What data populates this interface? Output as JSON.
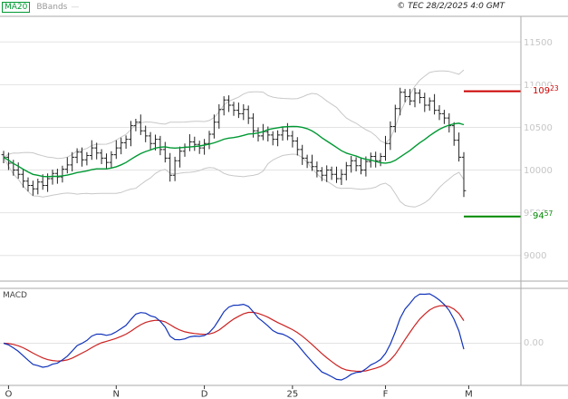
{
  "legend": {
    "ma20": "MA20",
    "bbands": "BBands",
    "sample": "—"
  },
  "copyright": "© TEC 28/2/2025 4:0 GMT",
  "macd_label": "MACD",
  "levels": {
    "resistance": {
      "value": 10923,
      "label_main": "109",
      "label_sup": "23",
      "color": "#cc0000"
    },
    "support": {
      "value": 9457,
      "label_main": "94",
      "label_sup": "57",
      "color": "#008800"
    }
  },
  "chart_data": {
    "type": "ohlc",
    "grid": true,
    "legend_position": "top-left",
    "y_axis_side": "right",
    "y_range": [
      8700,
      11800
    ],
    "y_ticks": [
      {
        "value": 11500,
        "label": "11500"
      },
      {
        "value": 11000,
        "label": "11000"
      },
      {
        "value": 10500,
        "label": "10500"
      },
      {
        "value": 10000,
        "label": "10000"
      },
      {
        "value": 9500,
        "label": "9500"
      },
      {
        "value": 9000,
        "label": "9000"
      }
    ],
    "x_ticks": [
      {
        "label": "O",
        "index": 1
      },
      {
        "label": "N",
        "index": 23
      },
      {
        "label": "D",
        "index": 41
      },
      {
        "label": "25",
        "index": 59
      },
      {
        "label": "F",
        "index": 78
      },
      {
        "label": "M",
        "index": 95
      }
    ],
    "indicators": {
      "ma_period": 20,
      "bbands": {
        "period": 20,
        "mult": 2
      },
      "macd": {
        "fast": 12,
        "slow": 26,
        "signal": 9
      }
    },
    "macd_zero_label": "0.00",
    "ohlc": [
      [
        10180,
        10225,
        10080,
        10150
      ],
      [
        10150,
        10205,
        10000,
        10080
      ],
      [
        10080,
        10120,
        9935,
        10000
      ],
      [
        10000,
        10090,
        9900,
        9950
      ],
      [
        9950,
        10010,
        9795,
        9870
      ],
      [
        9870,
        9915,
        9750,
        9820
      ],
      [
        9820,
        9875,
        9700,
        9780
      ],
      [
        9780,
        9900,
        9715,
        9860
      ],
      [
        9860,
        9950,
        9770,
        9820
      ],
      [
        9820,
        9960,
        9745,
        9900
      ],
      [
        9900,
        10005,
        9830,
        9960
      ],
      [
        9960,
        10015,
        9840,
        9920
      ],
      [
        9920,
        10050,
        9855,
        10010
      ],
      [
        10010,
        10150,
        9960,
        10060
      ],
      [
        10060,
        10210,
        9985,
        10150
      ],
      [
        10150,
        10255,
        10080,
        10210
      ],
      [
        10210,
        10265,
        10040,
        10120
      ],
      [
        10120,
        10210,
        10055,
        10170
      ],
      [
        10170,
        10350,
        10120,
        10260
      ],
      [
        10260,
        10320,
        10125,
        10200
      ],
      [
        10200,
        10245,
        10070,
        10140
      ],
      [
        10140,
        10195,
        10010,
        10090
      ],
      [
        10090,
        10220,
        10025,
        10180
      ],
      [
        10180,
        10350,
        10130,
        10260
      ],
      [
        10260,
        10380,
        10185,
        10320
      ],
      [
        10320,
        10405,
        10250,
        10360
      ],
      [
        10360,
        10575,
        10280,
        10520
      ],
      [
        10520,
        10600,
        10455,
        10560
      ],
      [
        10560,
        10650,
        10410,
        10460
      ],
      [
        10460,
        10520,
        10325,
        10400
      ],
      [
        10400,
        10445,
        10240,
        10310
      ],
      [
        10310,
        10415,
        10230,
        10360
      ],
      [
        10360,
        10400,
        10175,
        10240
      ],
      [
        10240,
        10330,
        10090,
        10140
      ],
      [
        10140,
        10200,
        9865,
        9940
      ],
      [
        9940,
        10155,
        9870,
        10110
      ],
      [
        10110,
        10275,
        10030,
        10220
      ],
      [
        10220,
        10310,
        10155,
        10270
      ],
      [
        10270,
        10420,
        10220,
        10330
      ],
      [
        10330,
        10390,
        10225,
        10300
      ],
      [
        10300,
        10345,
        10190,
        10260
      ],
      [
        10260,
        10365,
        10180,
        10310
      ],
      [
        10310,
        10460,
        10245,
        10420
      ],
      [
        10420,
        10650,
        10370,
        10560
      ],
      [
        10560,
        10770,
        10485,
        10710
      ],
      [
        10710,
        10865,
        10640,
        10820
      ],
      [
        10820,
        10875,
        10680,
        10760
      ],
      [
        10760,
        10800,
        10635,
        10700
      ],
      [
        10700,
        10790,
        10610,
        10660
      ],
      [
        10660,
        10770,
        10585,
        10710
      ],
      [
        10710,
        10755,
        10540,
        10610
      ],
      [
        10610,
        10665,
        10380,
        10460
      ],
      [
        10460,
        10500,
        10335,
        10400
      ],
      [
        10400,
        10540,
        10350,
        10450
      ],
      [
        10450,
        10510,
        10335,
        10410
      ],
      [
        10410,
        10455,
        10290,
        10360
      ],
      [
        10360,
        10465,
        10280,
        10410
      ],
      [
        10410,
        10500,
        10345,
        10460
      ],
      [
        10460,
        10550,
        10350,
        10400
      ],
      [
        10400,
        10460,
        10265,
        10340
      ],
      [
        10340,
        10385,
        10170,
        10240
      ],
      [
        10240,
        10295,
        10060,
        10140
      ],
      [
        10140,
        10180,
        10025,
        10090
      ],
      [
        10090,
        10180,
        9990,
        10040
      ],
      [
        10040,
        10100,
        9915,
        9990
      ],
      [
        9990,
        10035,
        9870,
        9940
      ],
      [
        9940,
        10055,
        9860,
        10000
      ],
      [
        10000,
        10040,
        9885,
        9950
      ],
      [
        9950,
        10040,
        9850,
        9900
      ],
      [
        9900,
        10010,
        9825,
        9950
      ],
      [
        9950,
        10095,
        9880,
        10050
      ],
      [
        10050,
        10165,
        9970,
        10110
      ],
      [
        10110,
        10150,
        9985,
        10050
      ],
      [
        10050,
        10140,
        9950,
        10000
      ],
      [
        10000,
        10160,
        9925,
        10100
      ],
      [
        10100,
        10205,
        10030,
        10160
      ],
      [
        10160,
        10215,
        10030,
        10110
      ],
      [
        10110,
        10200,
        10045,
        10160
      ],
      [
        10160,
        10400,
        10110,
        10310
      ],
      [
        10310,
        10570,
        10235,
        10510
      ],
      [
        10510,
        10765,
        10440,
        10720
      ],
      [
        10720,
        10965,
        10640,
        10910
      ],
      [
        10910,
        10950,
        10795,
        10860
      ],
      [
        10860,
        10950,
        10760,
        10810
      ],
      [
        10810,
        10960,
        10735,
        10900
      ],
      [
        10900,
        10945,
        10780,
        10850
      ],
      [
        10850,
        10905,
        10680,
        10760
      ],
      [
        10760,
        10850,
        10695,
        10810
      ],
      [
        10810,
        10890,
        10650,
        10700
      ],
      [
        10700,
        10760,
        10585,
        10660
      ],
      [
        10660,
        10705,
        10540,
        10610
      ],
      [
        10610,
        10665,
        10440,
        10520
      ],
      [
        10520,
        10560,
        10285,
        10350
      ],
      [
        10350,
        10440,
        10100,
        10150
      ],
      [
        10150,
        10210,
        9685,
        9760
      ]
    ],
    "colors": {
      "bars": "#222222",
      "ma20": "#009933",
      "bbands": "#c8c8c8",
      "macd_line": "#1133bb",
      "macd_signal": "#cc2222",
      "grid": "#e3e3e3",
      "axis_text": "#c6c6c6",
      "month_text": "#333333",
      "border": "#aaaaaa",
      "legend_text": "#999999"
    }
  }
}
